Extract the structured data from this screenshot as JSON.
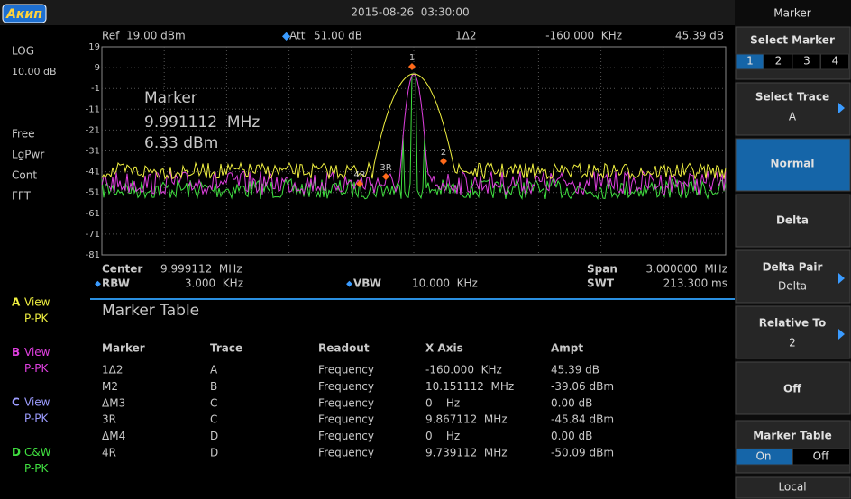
{
  "header": {
    "logo": "Акип",
    "datetime": "2015-08-26  03:30:00"
  },
  "left_panel": {
    "scale": "LOG",
    "scale_div": "10.00 dB",
    "modes": [
      "Free",
      "LgPwr",
      "Cont",
      "FFT"
    ],
    "traces": [
      {
        "label": "A",
        "mode": "View",
        "detector": "P-PK"
      },
      {
        "label": "B",
        "mode": "View",
        "detector": "P-PK"
      },
      {
        "label": "C",
        "mode": "View",
        "detector": "P-PK"
      },
      {
        "label": "D",
        "mode": "C&W",
        "detector": "P-PK"
      }
    ]
  },
  "plot": {
    "ref_label": "Ref",
    "ref": "19.00 dBm",
    "att_label": "Att",
    "att": "51.00 dB",
    "delta_name": "1Δ2",
    "delta_x": "-160.000  KHz",
    "delta_y": "45.39 dB",
    "y_labels": [
      "19",
      "9",
      "-1",
      "-11",
      "-21",
      "-31",
      "-41",
      "-51",
      "-61",
      "-71",
      "-81"
    ],
    "annotation": [
      "Marker",
      "9.991112  MHz",
      "6.33 dBm"
    ],
    "markers": [
      "1",
      "2",
      "3R",
      "4R"
    ],
    "center_label": "Center",
    "center": "9.999112  MHz",
    "span_label": "Span",
    "span": "3.000000  MHz",
    "rbw_label": "RBW",
    "rbw": "3.000  KHz",
    "vbw_label": "VBW",
    "vbw": "10.000  KHz",
    "swt_label": "SWT",
    "swt": "213.300 ms"
  },
  "marker_table": {
    "title": "Marker Table",
    "columns": [
      "Marker",
      "Trace",
      "Readout",
      "X Axis",
      "Ampt"
    ],
    "rows": [
      [
        "1Δ2",
        "A",
        "Frequency",
        "-160.000  KHz",
        "45.39 dB"
      ],
      [
        "M2",
        "B",
        "Frequency",
        "10.151112  MHz",
        "-39.06 dBm"
      ],
      [
        "ΔM3",
        "C",
        "Frequency",
        "0    Hz",
        "0.00 dB"
      ],
      [
        "3R",
        "C",
        "Frequency",
        "9.867112  MHz",
        "-45.84 dBm"
      ],
      [
        "ΔM4",
        "D",
        "Frequency",
        "0    Hz",
        "0.00 dB"
      ],
      [
        "4R",
        "D",
        "Frequency",
        "9.739112  MHz",
        "-50.09 dBm"
      ]
    ]
  },
  "menu": {
    "title": "Marker",
    "select_marker": {
      "label": "Select Marker",
      "options": [
        "1",
        "2",
        "3",
        "4"
      ]
    },
    "select_trace": {
      "label": "Select Trace",
      "value": "A"
    },
    "normal": "Normal",
    "delta": "Delta",
    "delta_pair": {
      "label": "Delta Pair",
      "value": "Delta"
    },
    "relative_to": {
      "label": "Relative To",
      "value": "2"
    },
    "off": "Off",
    "marker_table": {
      "label": "Marker Table",
      "options": [
        "On",
        "Off"
      ]
    },
    "local": "Local"
  }
}
